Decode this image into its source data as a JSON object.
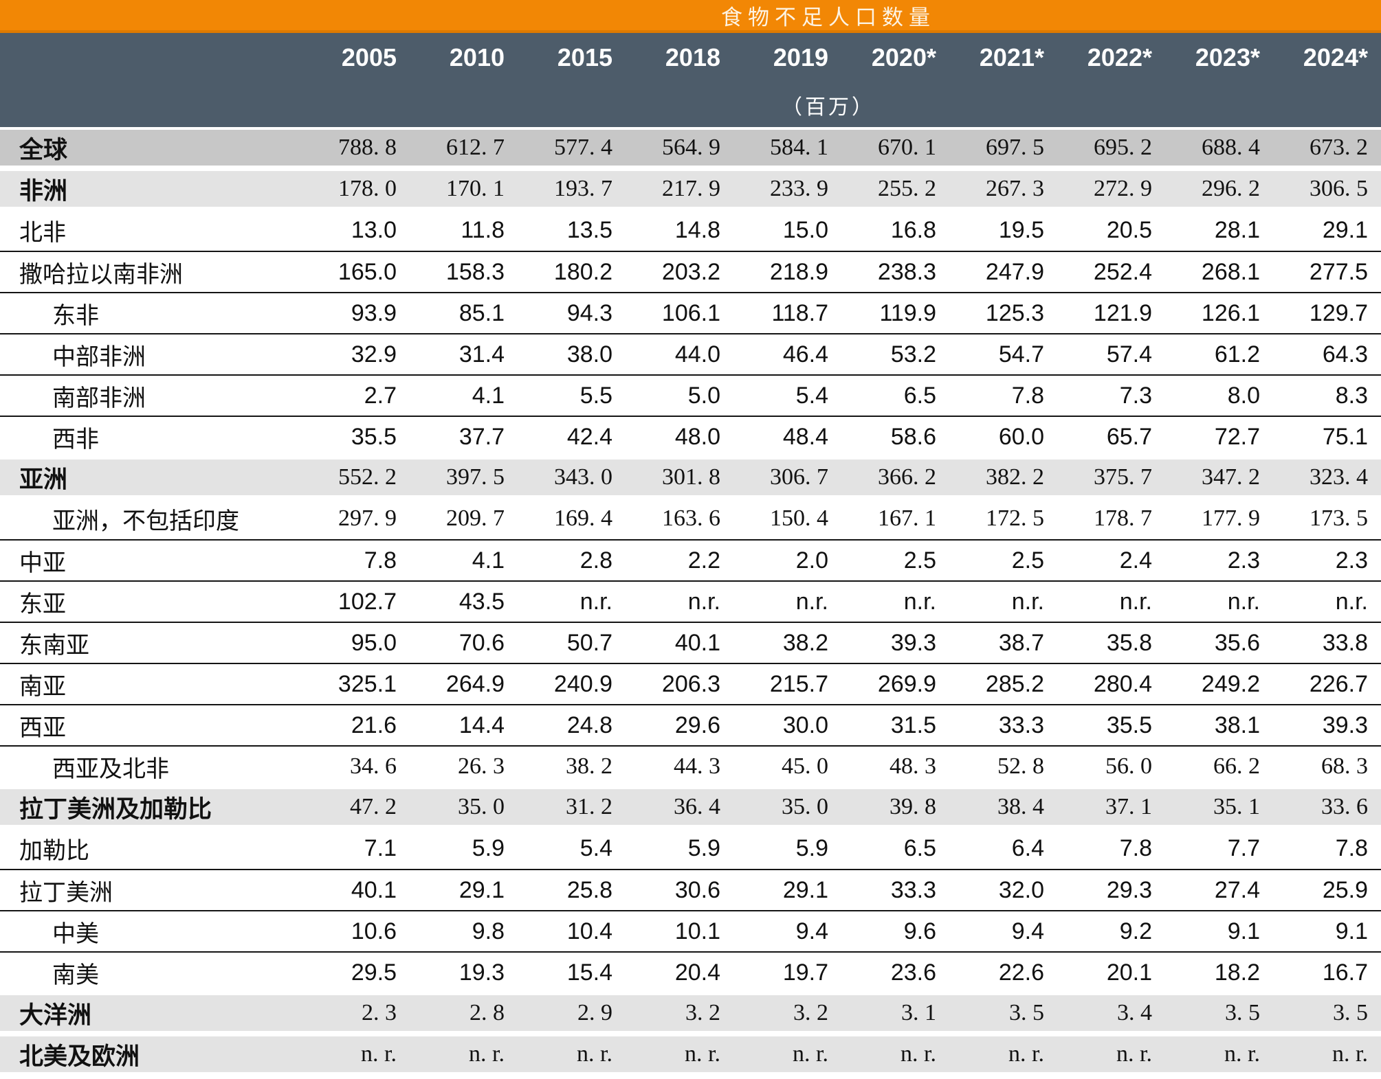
{
  "chart_data": {
    "type": "table",
    "title": "食物不足人口数量",
    "unit_label": "（百万）",
    "columns": [
      "2005",
      "2010",
      "2015",
      "2018",
      "2019",
      "2020*",
      "2021*",
      "2022*",
      "2023*",
      "2024*"
    ],
    "rows": [
      {
        "label": "全球",
        "indent": false,
        "style": "global",
        "wide": true,
        "values": [
          "788.8",
          "612.7",
          "577.4",
          "564.9",
          "584.1",
          "670.1",
          "697.5",
          "695.2",
          "688.4",
          "673.2"
        ]
      },
      {
        "label": "非洲",
        "indent": false,
        "style": "region",
        "wide": true,
        "values": [
          "178.0",
          "170.1",
          "193.7",
          "217.9",
          "233.9",
          "255.2",
          "267.3",
          "272.9",
          "296.2",
          "306.5"
        ]
      },
      {
        "label": "北非",
        "indent": false,
        "style": "plain",
        "wide": false,
        "values": [
          "13.0",
          "11.8",
          "13.5",
          "14.8",
          "15.0",
          "16.8",
          "19.5",
          "20.5",
          "28.1",
          "29.1"
        ]
      },
      {
        "label": "撒哈拉以南非洲",
        "indent": false,
        "style": "plain",
        "wide": false,
        "values": [
          "165.0",
          "158.3",
          "180.2",
          "203.2",
          "218.9",
          "238.3",
          "247.9",
          "252.4",
          "268.1",
          "277.5"
        ]
      },
      {
        "label": "东非",
        "indent": true,
        "style": "plain",
        "wide": false,
        "values": [
          "93.9",
          "85.1",
          "94.3",
          "106.1",
          "118.7",
          "119.9",
          "125.3",
          "121.9",
          "126.1",
          "129.7"
        ]
      },
      {
        "label": "中部非洲",
        "indent": true,
        "style": "plain",
        "wide": false,
        "values": [
          "32.9",
          "31.4",
          "38.0",
          "44.0",
          "46.4",
          "53.2",
          "54.7",
          "57.4",
          "61.2",
          "64.3"
        ]
      },
      {
        "label": "南部非洲",
        "indent": true,
        "style": "plain",
        "wide": false,
        "values": [
          "2.7",
          "4.1",
          "5.5",
          "5.0",
          "5.4",
          "6.5",
          "7.8",
          "7.3",
          "8.0",
          "8.3"
        ]
      },
      {
        "label": "西非",
        "indent": true,
        "style": "plain",
        "wide": false,
        "values": [
          "35.5",
          "37.7",
          "42.4",
          "48.0",
          "48.4",
          "58.6",
          "60.0",
          "65.7",
          "72.7",
          "75.1"
        ]
      },
      {
        "label": "亚洲",
        "indent": false,
        "style": "region",
        "wide": true,
        "values": [
          "552.2",
          "397.5",
          "343.0",
          "301.8",
          "306.7",
          "366.2",
          "382.2",
          "375.7",
          "347.2",
          "323.4"
        ]
      },
      {
        "label": "亚洲，不包括印度",
        "indent": true,
        "style": "plain",
        "wide": true,
        "values": [
          "297.9",
          "209.7",
          "169.4",
          "163.6",
          "150.4",
          "167.1",
          "172.5",
          "178.7",
          "177.9",
          "173.5"
        ]
      },
      {
        "label": "中亚",
        "indent": false,
        "style": "plain",
        "wide": false,
        "values": [
          "7.8",
          "4.1",
          "2.8",
          "2.2",
          "2.0",
          "2.5",
          "2.5",
          "2.4",
          "2.3",
          "2.3"
        ]
      },
      {
        "label": "东亚",
        "indent": false,
        "style": "plain",
        "wide": false,
        "values": [
          "102.7",
          "43.5",
          "n.r.",
          "n.r.",
          "n.r.",
          "n.r.",
          "n.r.",
          "n.r.",
          "n.r.",
          "n.r."
        ]
      },
      {
        "label": "东南亚",
        "indent": false,
        "style": "plain",
        "wide": false,
        "values": [
          "95.0",
          "70.6",
          "50.7",
          "40.1",
          "38.2",
          "39.3",
          "38.7",
          "35.8",
          "35.6",
          "33.8"
        ]
      },
      {
        "label": "南亚",
        "indent": false,
        "style": "plain",
        "wide": false,
        "values": [
          "325.1",
          "264.9",
          "240.9",
          "206.3",
          "215.7",
          "269.9",
          "285.2",
          "280.4",
          "249.2",
          "226.7"
        ]
      },
      {
        "label": "西亚",
        "indent": false,
        "style": "plain",
        "wide": false,
        "values": [
          "21.6",
          "14.4",
          "24.8",
          "29.6",
          "30.0",
          "31.5",
          "33.3",
          "35.5",
          "38.1",
          "39.3"
        ]
      },
      {
        "label": "西亚及北非",
        "indent": true,
        "style": "plain",
        "wide": true,
        "values": [
          "34.6",
          "26.3",
          "38.2",
          "44.3",
          "45.0",
          "48.3",
          "52.8",
          "56.0",
          "66.2",
          "68.3"
        ]
      },
      {
        "label": "拉丁美洲及加勒比",
        "indent": false,
        "style": "region",
        "wide": true,
        "values": [
          "47.2",
          "35.0",
          "31.2",
          "36.4",
          "35.0",
          "39.8",
          "38.4",
          "37.1",
          "35.1",
          "33.6"
        ]
      },
      {
        "label": "加勒比",
        "indent": false,
        "style": "plain",
        "wide": false,
        "values": [
          "7.1",
          "5.9",
          "5.4",
          "5.9",
          "5.9",
          "6.5",
          "6.4",
          "7.8",
          "7.7",
          "7.8"
        ]
      },
      {
        "label": "拉丁美洲",
        "indent": false,
        "style": "plain",
        "wide": false,
        "values": [
          "40.1",
          "29.1",
          "25.8",
          "30.6",
          "29.1",
          "33.3",
          "32.0",
          "29.3",
          "27.4",
          "25.9"
        ]
      },
      {
        "label": "中美",
        "indent": true,
        "style": "plain",
        "wide": false,
        "values": [
          "10.6",
          "9.8",
          "10.4",
          "10.1",
          "9.4",
          "9.6",
          "9.4",
          "9.2",
          "9.1",
          "9.1"
        ]
      },
      {
        "label": "南美",
        "indent": true,
        "style": "plain",
        "wide": false,
        "values": [
          "29.5",
          "19.3",
          "15.4",
          "20.4",
          "19.7",
          "23.6",
          "22.6",
          "20.1",
          "18.2",
          "16.7"
        ]
      },
      {
        "label": "大洋洲",
        "indent": false,
        "style": "region",
        "wide": true,
        "values": [
          "2.3",
          "2.8",
          "2.9",
          "3.2",
          "3.2",
          "3.1",
          "3.5",
          "3.4",
          "3.5",
          "3.5"
        ]
      },
      {
        "label": "北美及欧洲",
        "indent": false,
        "style": "region",
        "wide": true,
        "values": [
          "n.r.",
          "n.r.",
          "n.r.",
          "n.r.",
          "n.r.",
          "n.r.",
          "n.r.",
          "n.r.",
          "n.r.",
          "n.r."
        ]
      }
    ]
  },
  "colors": {
    "title_bar": "#f28705",
    "title_bar_border": "#de7a00",
    "title_text": "#fdf3e3",
    "header_bg": "#4d5c6a",
    "header_text": "#ffffff",
    "row_global_bg": "#c7c7c7",
    "row_region_bg": "#e3e3e3",
    "separator": "#141414"
  }
}
